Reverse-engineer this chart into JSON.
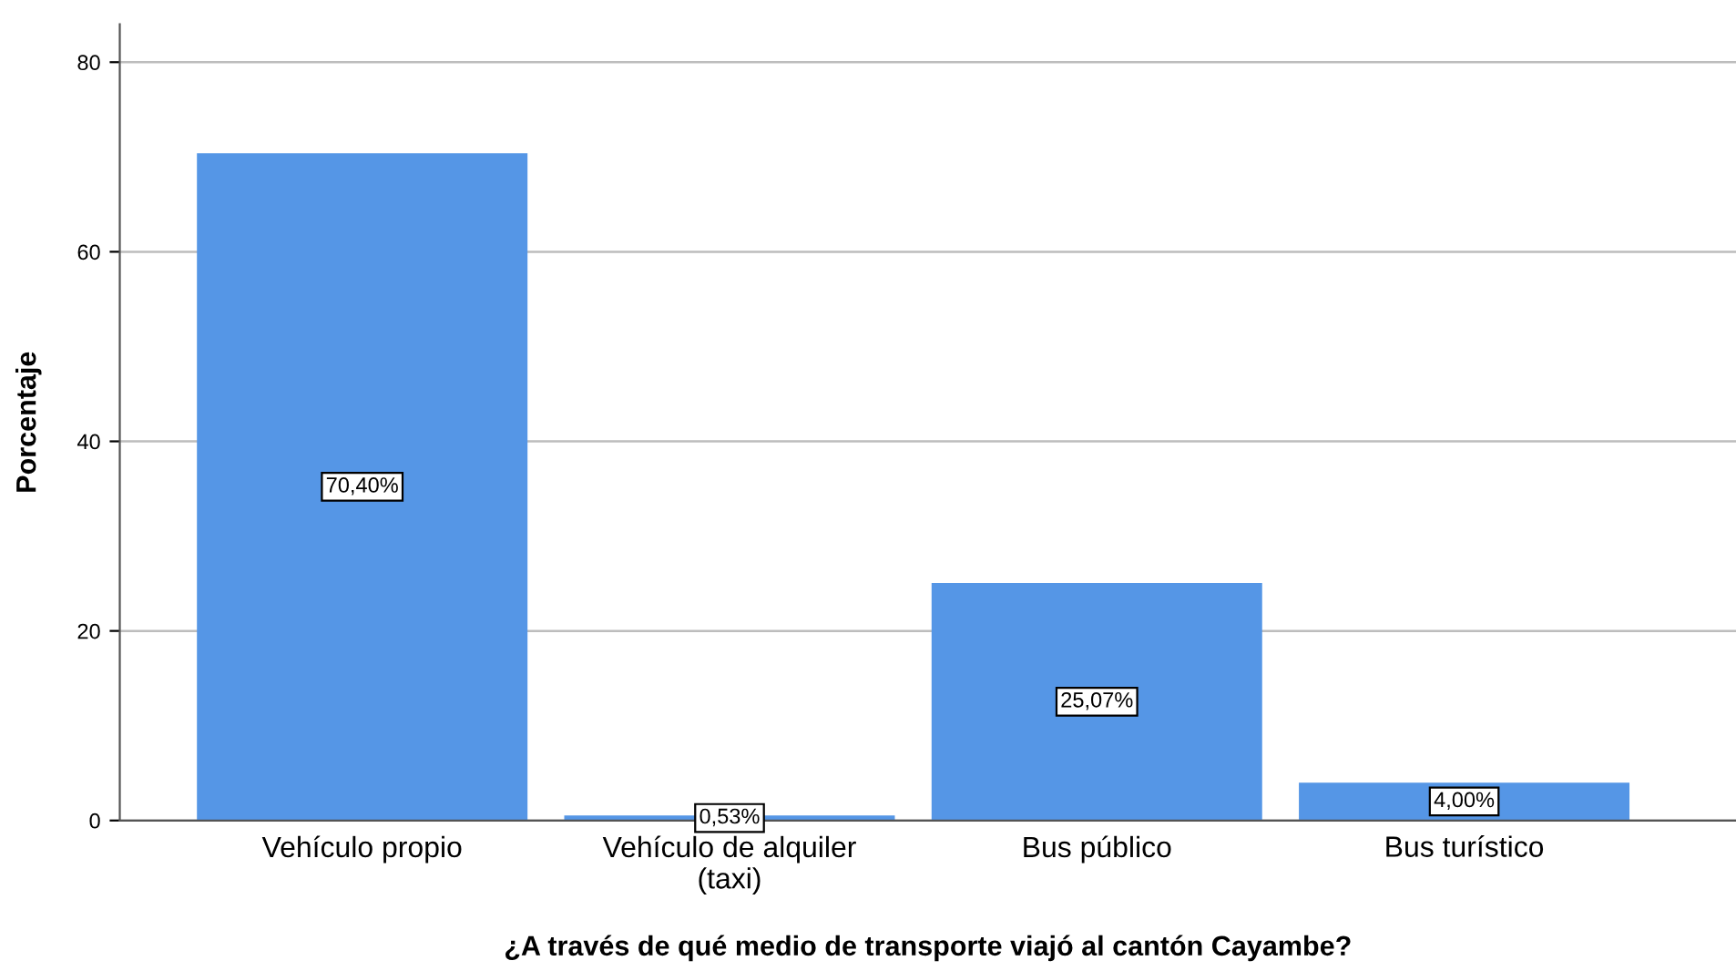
{
  "chart_data": {
    "type": "bar",
    "xlabel": "¿A través de qué medio de transporte viajó al cantón Cayambe?",
    "ylabel": "Porcentaje",
    "categories": [
      "Vehículo propio",
      "Vehículo de alquiler\n(taxi)",
      "Bus público",
      "Bus turístico"
    ],
    "values": [
      70.4,
      0.53,
      25.07,
      4.0
    ],
    "value_labels": [
      "70,40%",
      "0,53%",
      "25,07%",
      "4,00%"
    ],
    "color": "#5596e6",
    "ylim": [
      0,
      84
    ],
    "yticks": [
      0,
      20,
      40,
      60,
      80
    ],
    "grid": "y",
    "legend": false
  }
}
